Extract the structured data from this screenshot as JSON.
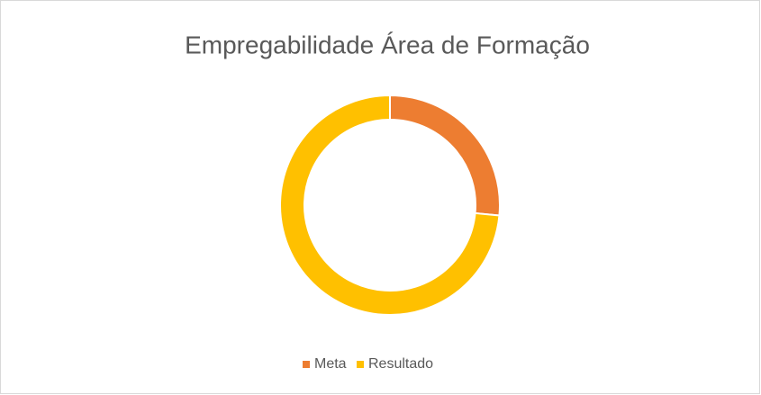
{
  "chart_data": {
    "type": "donut",
    "title": "Empregabilidade Área de Formação",
    "categories": [
      "Meta",
      "Resultado"
    ],
    "values": [
      26.5,
      73.5
    ],
    "colors": [
      "#ED7D31",
      "#FFC000"
    ],
    "legend": "bottom"
  }
}
